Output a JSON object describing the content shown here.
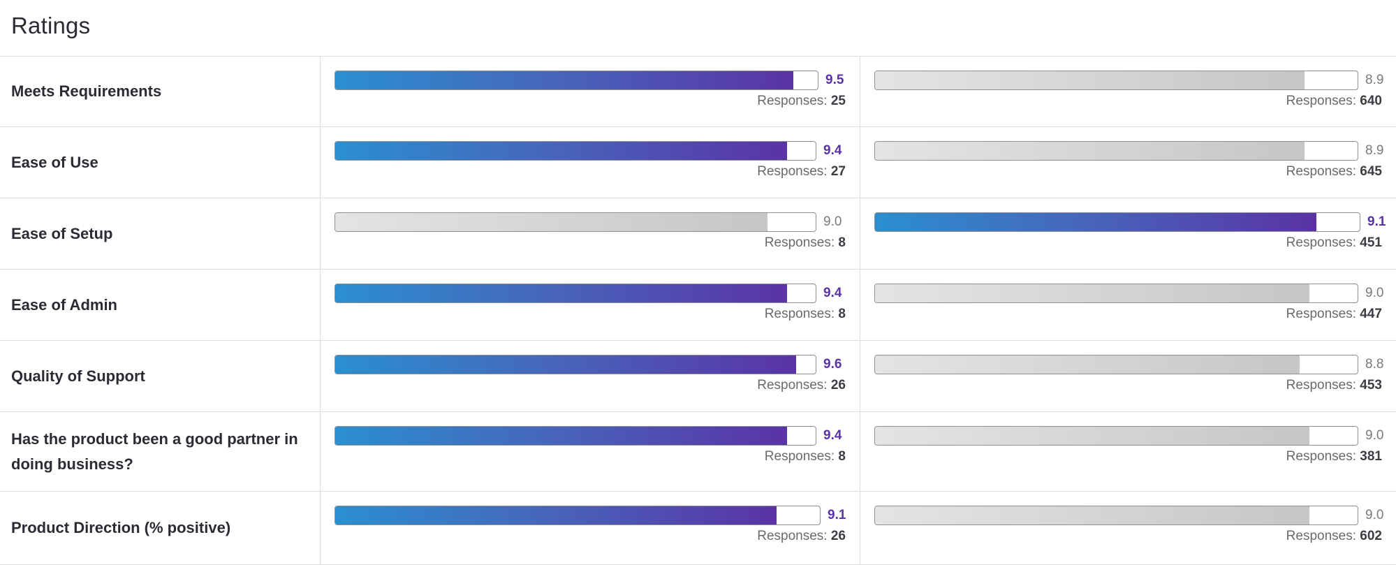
{
  "title": "Ratings",
  "responses_label": "Responses: ",
  "colors": {
    "leader_gradient": [
      "#2a8fd0",
      "#5a33a6"
    ],
    "other_gradient": [
      "#e4e4e4",
      "#c6c6c6"
    ],
    "leader_text": "#5a33a6"
  },
  "scale_max": 10,
  "rows": [
    {
      "label": "Meets Requirements",
      "left": {
        "score": "9.5",
        "responses": "25",
        "highlight": true
      },
      "right": {
        "score": "8.9",
        "responses": "640",
        "highlight": false
      }
    },
    {
      "label": "Ease of Use",
      "left": {
        "score": "9.4",
        "responses": "27",
        "highlight": true
      },
      "right": {
        "score": "8.9",
        "responses": "645",
        "highlight": false
      }
    },
    {
      "label": "Ease of Setup",
      "left": {
        "score": "9.0",
        "responses": "8",
        "highlight": false
      },
      "right": {
        "score": "9.1",
        "responses": "451",
        "highlight": true
      }
    },
    {
      "label": "Ease of Admin",
      "left": {
        "score": "9.4",
        "responses": "8",
        "highlight": true
      },
      "right": {
        "score": "9.0",
        "responses": "447",
        "highlight": false
      }
    },
    {
      "label": "Quality of Support",
      "left": {
        "score": "9.6",
        "responses": "26",
        "highlight": true
      },
      "right": {
        "score": "8.8",
        "responses": "453",
        "highlight": false
      }
    },
    {
      "label": "Has the product been a good partner in doing business?",
      "left": {
        "score": "9.4",
        "responses": "8",
        "highlight": true
      },
      "right": {
        "score": "9.0",
        "responses": "381",
        "highlight": false
      }
    },
    {
      "label": "Product Direction (% positive)",
      "left": {
        "score": "9.1",
        "responses": "26",
        "highlight": true
      },
      "right": {
        "score": "9.0",
        "responses": "602",
        "highlight": false
      }
    }
  ]
}
